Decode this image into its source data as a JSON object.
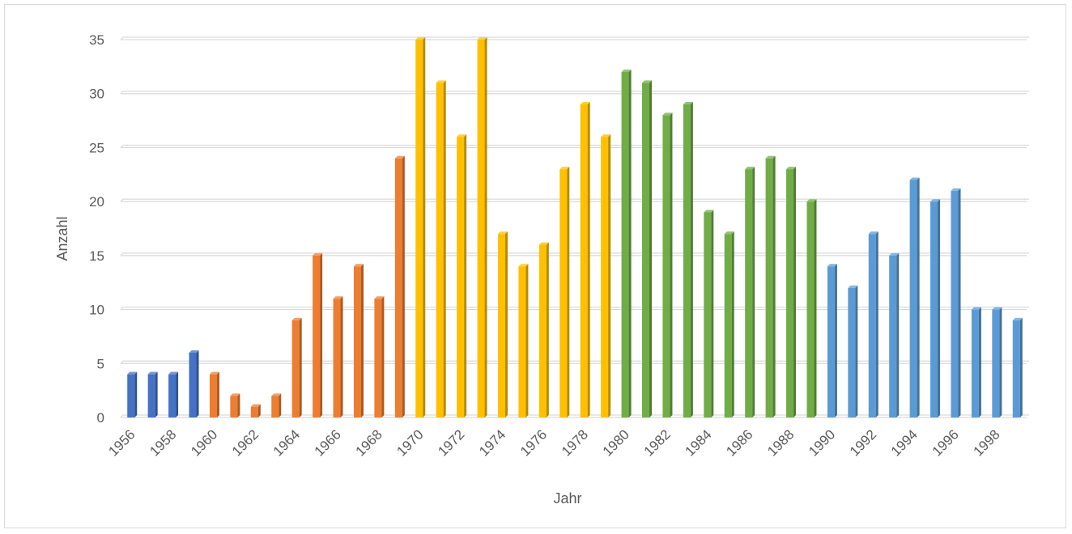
{
  "chart_data": {
    "type": "bar",
    "title": "",
    "xlabel": "Jahr",
    "ylabel": "Anzahl",
    "ylim": [
      0,
      35
    ],
    "yticks": [
      0,
      5,
      10,
      15,
      20,
      25,
      30,
      35
    ],
    "grid": true,
    "legend": "none",
    "categories": [
      "1956",
      "1957",
      "1958",
      "1959",
      "1960",
      "1961",
      "1962",
      "1963",
      "1964",
      "1965",
      "1966",
      "1967",
      "1968",
      "1969",
      "1970",
      "1971",
      "1972",
      "1973",
      "1974",
      "1975",
      "1976",
      "1977",
      "1978",
      "1979",
      "1980",
      "1981",
      "1982",
      "1983",
      "1984",
      "1985",
      "1986",
      "1987",
      "1988",
      "1989",
      "1990",
      "1991",
      "1992",
      "1993",
      "1994",
      "1995",
      "1996",
      "1997",
      "1998",
      "1999"
    ],
    "x_tick_labels": [
      "1956",
      "1958",
      "1960",
      "1962",
      "1964",
      "1966",
      "1968",
      "1970",
      "1972",
      "1974",
      "1976",
      "1978",
      "1980",
      "1982",
      "1984",
      "1986",
      "1988",
      "1990",
      "1992",
      "1994",
      "1996",
      "1998"
    ],
    "values": [
      4,
      4,
      4,
      6,
      4,
      2,
      1,
      2,
      9,
      15,
      11,
      14,
      11,
      24,
      35,
      31,
      26,
      35,
      17,
      14,
      16,
      23,
      29,
      26,
      32,
      31,
      28,
      29,
      19,
      17,
      23,
      24,
      23,
      20,
      14,
      12,
      17,
      15,
      22,
      20,
      21,
      10,
      10,
      9
    ],
    "colors": [
      "#4472c4",
      "#4472c4",
      "#4472c4",
      "#4472c4",
      "#ed7d31",
      "#ed7d31",
      "#ed7d31",
      "#ed7d31",
      "#ed7d31",
      "#ed7d31",
      "#ed7d31",
      "#ed7d31",
      "#ed7d31",
      "#ed7d31",
      "#ffc000",
      "#ffc000",
      "#ffc000",
      "#ffc000",
      "#ffc000",
      "#ffc000",
      "#ffc000",
      "#ffc000",
      "#ffc000",
      "#ffc000",
      "#70ad47",
      "#70ad47",
      "#70ad47",
      "#70ad47",
      "#70ad47",
      "#70ad47",
      "#70ad47",
      "#70ad47",
      "#70ad47",
      "#70ad47",
      "#5b9bd5",
      "#5b9bd5",
      "#5b9bd5",
      "#5b9bd5",
      "#5b9bd5",
      "#5b9bd5",
      "#5b9bd5",
      "#5b9bd5",
      "#5b9bd5",
      "#5b9bd5"
    ],
    "gridline_color": "#d9d9d9",
    "text_color": "#595959"
  }
}
